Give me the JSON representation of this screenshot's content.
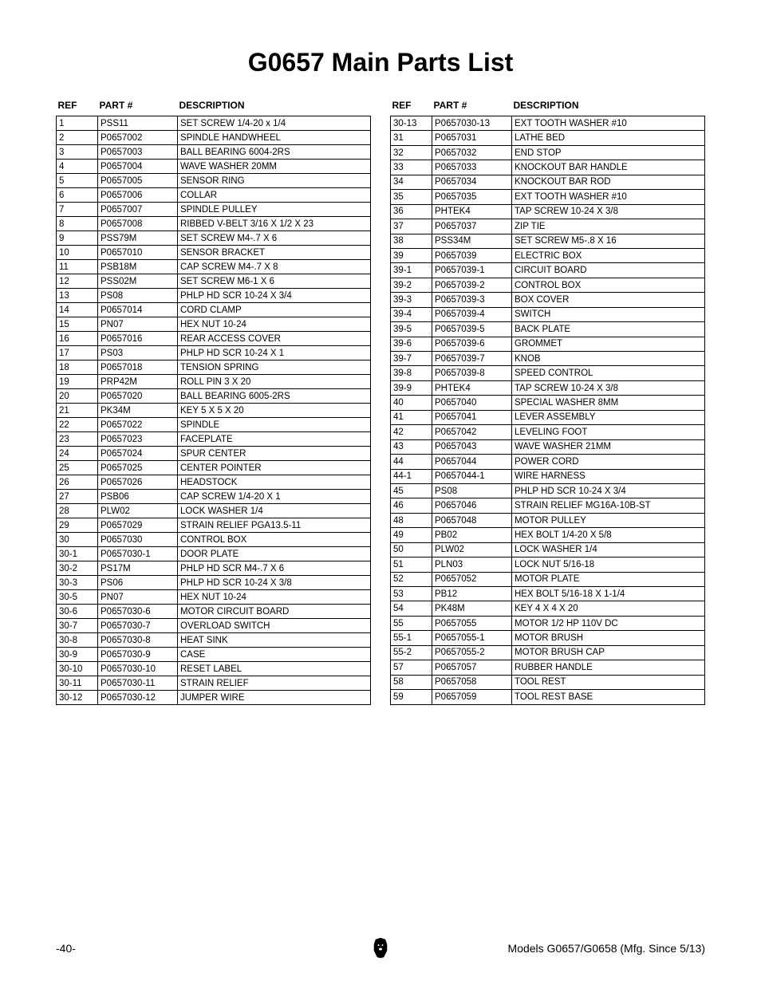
{
  "title": "G0657 Main Parts List",
  "headers": {
    "ref": "REF",
    "part": "PART #",
    "description": "DESCRIPTION"
  },
  "left_table": [
    {
      "ref": "1",
      "part": "PSS11",
      "desc": "SET SCREW 1/4-20 x 1/4"
    },
    {
      "ref": "2",
      "part": "P0657002",
      "desc": "SPINDLE HANDWHEEL"
    },
    {
      "ref": "3",
      "part": "P0657003",
      "desc": "BALL BEARING 6004-2RS"
    },
    {
      "ref": "4",
      "part": "P0657004",
      "desc": "WAVE WASHER 20MM"
    },
    {
      "ref": "5",
      "part": "P0657005",
      "desc": "SENSOR RING"
    },
    {
      "ref": "6",
      "part": "P0657006",
      "desc": "COLLAR"
    },
    {
      "ref": "7",
      "part": "P0657007",
      "desc": "SPINDLE PULLEY"
    },
    {
      "ref": "8",
      "part": "P0657008",
      "desc": "RIBBED V-BELT 3/16 X 1/2 X 23"
    },
    {
      "ref": "9",
      "part": "PSS79M",
      "desc": "SET SCREW M4-.7 X 6"
    },
    {
      "ref": "10",
      "part": "P0657010",
      "desc": "SENSOR BRACKET"
    },
    {
      "ref": "11",
      "part": "PSB18M",
      "desc": "CAP SCREW M4-.7 X 8"
    },
    {
      "ref": "12",
      "part": "PSS02M",
      "desc": "SET SCREW M6-1 X 6"
    },
    {
      "ref": "13",
      "part": "PS08",
      "desc": "PHLP HD SCR 10-24 X 3/4"
    },
    {
      "ref": "14",
      "part": "P0657014",
      "desc": "CORD CLAMP"
    },
    {
      "ref": "15",
      "part": "PN07",
      "desc": "HEX NUT 10-24"
    },
    {
      "ref": "16",
      "part": "P0657016",
      "desc": "REAR ACCESS COVER"
    },
    {
      "ref": "17",
      "part": "PS03",
      "desc": "PHLP HD SCR 10-24 X 1"
    },
    {
      "ref": "18",
      "part": "P0657018",
      "desc": "TENSION SPRING"
    },
    {
      "ref": "19",
      "part": "PRP42M",
      "desc": "ROLL PIN 3 X 20"
    },
    {
      "ref": "20",
      "part": "P0657020",
      "desc": "BALL BEARING 6005-2RS"
    },
    {
      "ref": "21",
      "part": "PK34M",
      "desc": "KEY 5 X 5 X 20"
    },
    {
      "ref": "22",
      "part": "P0657022",
      "desc": "SPINDLE"
    },
    {
      "ref": "23",
      "part": "P0657023",
      "desc": "FACEPLATE"
    },
    {
      "ref": "24",
      "part": "P0657024",
      "desc": "SPUR CENTER"
    },
    {
      "ref": "25",
      "part": "P0657025",
      "desc": "CENTER POINTER"
    },
    {
      "ref": "26",
      "part": "P0657026",
      "desc": "HEADSTOCK"
    },
    {
      "ref": "27",
      "part": "PSB06",
      "desc": "CAP SCREW 1/4-20 X 1"
    },
    {
      "ref": "28",
      "part": "PLW02",
      "desc": "LOCK WASHER 1/4"
    },
    {
      "ref": "29",
      "part": "P0657029",
      "desc": "STRAIN RELIEF PGA13.5-11"
    },
    {
      "ref": "30",
      "part": "P0657030",
      "desc": "CONTROL BOX"
    },
    {
      "ref": "30-1",
      "part": "P0657030-1",
      "desc": "DOOR PLATE"
    },
    {
      "ref": "30-2",
      "part": "PS17M",
      "desc": "PHLP HD SCR M4-.7 X 6"
    },
    {
      "ref": "30-3",
      "part": "PS06",
      "desc": "PHLP HD SCR 10-24 X 3/8"
    },
    {
      "ref": "30-5",
      "part": "PN07",
      "desc": "HEX NUT 10-24"
    },
    {
      "ref": "30-6",
      "part": "P0657030-6",
      "desc": "MOTOR CIRCUIT BOARD"
    },
    {
      "ref": "30-7",
      "part": "P0657030-7",
      "desc": "OVERLOAD SWITCH"
    },
    {
      "ref": "30-8",
      "part": "P0657030-8",
      "desc": "HEAT SINK"
    },
    {
      "ref": "30-9",
      "part": "P0657030-9",
      "desc": "CASE"
    },
    {
      "ref": "30-10",
      "part": "P0657030-10",
      "desc": "RESET LABEL"
    },
    {
      "ref": "30-11",
      "part": "P0657030-11",
      "desc": "STRAIN RELIEF"
    },
    {
      "ref": "30-12",
      "part": "P0657030-12",
      "desc": "JUMPER WIRE"
    }
  ],
  "right_table": [
    {
      "ref": "30-13",
      "part": "P0657030-13",
      "desc": "EXT TOOTH WASHER #10"
    },
    {
      "ref": "31",
      "part": "P0657031",
      "desc": "LATHE BED"
    },
    {
      "ref": "32",
      "part": "P0657032",
      "desc": "END STOP"
    },
    {
      "ref": "33",
      "part": "P0657033",
      "desc": "KNOCKOUT BAR HANDLE"
    },
    {
      "ref": "34",
      "part": "P0657034",
      "desc": "KNOCKOUT BAR ROD"
    },
    {
      "ref": "35",
      "part": "P0657035",
      "desc": "EXT TOOTH WASHER #10"
    },
    {
      "ref": "36",
      "part": "PHTEK4",
      "desc": "TAP SCREW 10-24 X 3/8"
    },
    {
      "ref": "37",
      "part": "P0657037",
      "desc": "ZIP TIE"
    },
    {
      "ref": "38",
      "part": "PSS34M",
      "desc": "SET SCREW M5-.8 X 16"
    },
    {
      "ref": "39",
      "part": "P0657039",
      "desc": "ELECTRIC BOX"
    },
    {
      "ref": "39-1",
      "part": "P0657039-1",
      "desc": "CIRCUIT BOARD"
    },
    {
      "ref": "39-2",
      "part": "P0657039-2",
      "desc": "CONTROL BOX"
    },
    {
      "ref": "39-3",
      "part": "P0657039-3",
      "desc": "BOX COVER"
    },
    {
      "ref": "39-4",
      "part": "P0657039-4",
      "desc": "SWITCH"
    },
    {
      "ref": "39-5",
      "part": "P0657039-5",
      "desc": "BACK PLATE"
    },
    {
      "ref": "39-6",
      "part": "P0657039-6",
      "desc": "GROMMET"
    },
    {
      "ref": "39-7",
      "part": "P0657039-7",
      "desc": "KNOB"
    },
    {
      "ref": "39-8",
      "part": "P0657039-8",
      "desc": "SPEED CONTROL"
    },
    {
      "ref": "39-9",
      "part": "PHTEK4",
      "desc": "TAP SCREW 10-24 X 3/8"
    },
    {
      "ref": "40",
      "part": "P0657040",
      "desc": "SPECIAL WASHER 8MM"
    },
    {
      "ref": "41",
      "part": "P0657041",
      "desc": "LEVER ASSEMBLY"
    },
    {
      "ref": "42",
      "part": "P0657042",
      "desc": "LEVELING FOOT"
    },
    {
      "ref": "43",
      "part": "P0657043",
      "desc": "WAVE WASHER 21MM"
    },
    {
      "ref": "44",
      "part": "P0657044",
      "desc": "POWER CORD"
    },
    {
      "ref": "44-1",
      "part": "P0657044-1",
      "desc": "WIRE HARNESS"
    },
    {
      "ref": "45",
      "part": "PS08",
      "desc": "PHLP HD SCR 10-24 X 3/4"
    },
    {
      "ref": "46",
      "part": "P0657046",
      "desc": "STRAIN RELIEF MG16A-10B-ST"
    },
    {
      "ref": "48",
      "part": "P0657048",
      "desc": "MOTOR PULLEY"
    },
    {
      "ref": "49",
      "part": "PB02",
      "desc": "HEX BOLT 1/4-20 X 5/8"
    },
    {
      "ref": "50",
      "part": "PLW02",
      "desc": "LOCK WASHER 1/4"
    },
    {
      "ref": "51",
      "part": "PLN03",
      "desc": "LOCK NUT 5/16-18"
    },
    {
      "ref": "52",
      "part": "P0657052",
      "desc": "MOTOR PLATE"
    },
    {
      "ref": "53",
      "part": "PB12",
      "desc": "HEX BOLT 5/16-18 X 1-1/4"
    },
    {
      "ref": "54",
      "part": "PK48M",
      "desc": "KEY 4 X 4 X 20"
    },
    {
      "ref": "55",
      "part": "P0657055",
      "desc": "MOTOR 1/2 HP 110V DC"
    },
    {
      "ref": "55-1",
      "part": "P0657055-1",
      "desc": "MOTOR BRUSH"
    },
    {
      "ref": "55-2",
      "part": "P0657055-2",
      "desc": "MOTOR BRUSH CAP"
    },
    {
      "ref": "57",
      "part": "P0657057",
      "desc": "RUBBER HANDLE"
    },
    {
      "ref": "58",
      "part": "P0657058",
      "desc": "TOOL REST"
    },
    {
      "ref": "59",
      "part": "P0657059",
      "desc": "TOOL REST BASE"
    }
  ],
  "footer": {
    "page": "-40-",
    "model_info": "Models G0657/G0658 (Mfg. Since 5/13)"
  }
}
